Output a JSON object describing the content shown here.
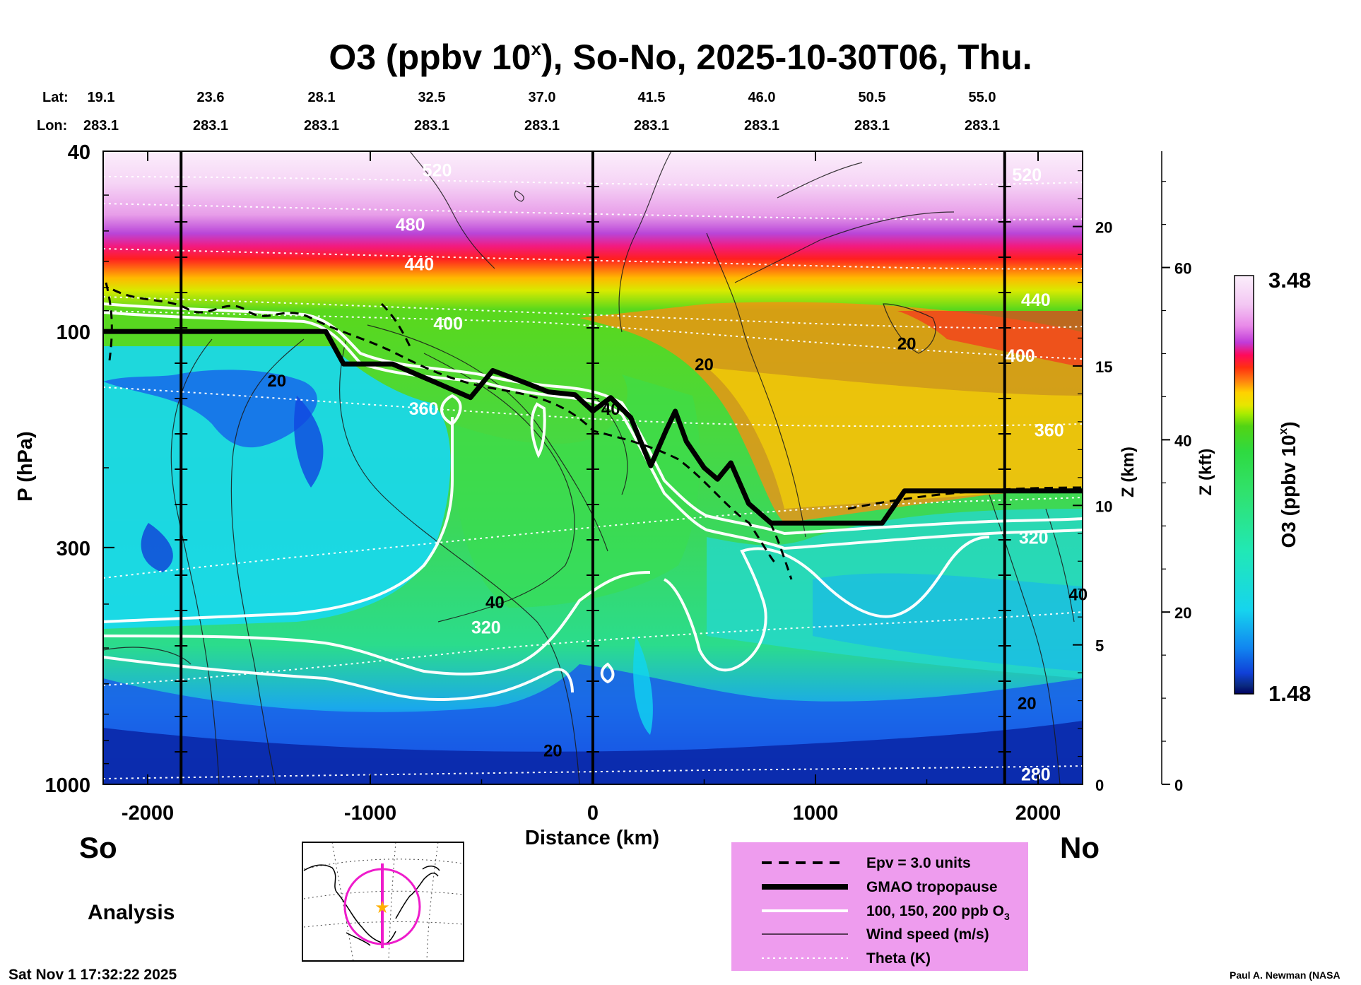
{
  "title": "O3 (ppbv 10",
  "title_sup": "x",
  "title_rest": "), So-No, 2025-10-30T06, Thu.",
  "lat_label": "Lat:",
  "lon_label": "Lon:",
  "lat_values": [
    "19.1",
    "23.6",
    "28.1",
    "32.5",
    "37.0",
    "41.5",
    "46.0",
    "50.5",
    "55.0"
  ],
  "lon_values": [
    "283.1",
    "283.1",
    "283.1",
    "283.1",
    "283.1",
    "283.1",
    "283.1",
    "283.1",
    "283.1"
  ],
  "south_label": "So",
  "north_label": "No",
  "analysis_label": "Analysis",
  "footer_date": "Sat Nov  1 17:32:22 2025",
  "footer_author": "Paul A. Newman (NASA",
  "colorbar": {
    "max_label": "3.48",
    "min_label": "1.48",
    "title": "O3 (ppbv 10",
    "title_sup": "x",
    "title_end": ")"
  },
  "legend": {
    "items": [
      {
        "label": "Epv = 3.0 units",
        "style": "dashed"
      },
      {
        "label": "GMAO tropopause",
        "style": "thick"
      },
      {
        "label": "100, 150, 200 ppb O",
        "sub": "3",
        "style": "white"
      },
      {
        "label": "Wind speed (m/s)",
        "style": "thin"
      },
      {
        "label": "Theta (K)",
        "style": "dotted"
      }
    ]
  },
  "chart_data": {
    "type": "heatmap",
    "title": "O3 (ppbv 10^x), So-No, 2025-10-30T06, Thu.",
    "xlabel": "Distance (km)",
    "ylabel": "P (hPa)",
    "y2label": "Z (km)",
    "y3label": "Z (kft)",
    "xlim": [
      -2200,
      2200
    ],
    "ylim": [
      1000,
      40
    ],
    "x_ticks": [
      -2000,
      -1000,
      0,
      1000,
      2000
    ],
    "x_tick_labels": [
      "-2000",
      "-1000",
      "0",
      "1000",
      "2000"
    ],
    "y_ticks": [
      40,
      100,
      300,
      1000
    ],
    "y_tick_labels": [
      "40",
      "100",
      "300",
      "1000"
    ],
    "z_km_ticks": [
      0,
      5,
      10,
      15,
      20
    ],
    "z_km_labels": [
      "0",
      "5",
      "10",
      "15",
      "20"
    ],
    "z_kft_ticks": [
      0,
      20,
      40,
      60
    ],
    "z_kft_labels": [
      "0",
      "20",
      "40",
      "60"
    ],
    "colorbar_range": [
      1.48,
      3.48
    ],
    "theta_labels": [
      {
        "text": "520",
        "x": -700,
        "p": 44
      },
      {
        "text": "480",
        "x": -820,
        "p": 58
      },
      {
        "text": "440",
        "x": -780,
        "p": 71
      },
      {
        "text": "400",
        "x": -650,
        "p": 96
      },
      {
        "text": "360",
        "x": -760,
        "p": 148
      },
      {
        "text": "320",
        "x": -480,
        "p": 450
      },
      {
        "text": "520",
        "x": 1950,
        "p": 45
      },
      {
        "text": "440",
        "x": 1990,
        "p": 85
      },
      {
        "text": "400",
        "x": 1920,
        "p": 113
      },
      {
        "text": "360",
        "x": 2050,
        "p": 165
      },
      {
        "text": "320",
        "x": 1980,
        "p": 285
      },
      {
        "text": "280",
        "x": 1990,
        "p": 950
      }
    ],
    "wind_labels": [
      {
        "text": "20",
        "x": -1420,
        "p": 128
      },
      {
        "text": "40",
        "x": -440,
        "p": 395
      },
      {
        "text": "40",
        "x": 80,
        "p": 148
      },
      {
        "text": "20",
        "x": 500,
        "p": 118
      },
      {
        "text": "20",
        "x": 1410,
        "p": 106
      },
      {
        "text": "40",
        "x": 2180,
        "p": 380
      },
      {
        "text": "20",
        "x": 1950,
        "p": 660
      },
      {
        "text": "20",
        "x": -180,
        "p": 840
      }
    ],
    "tropopause": {
      "x": [
        -2200,
        -1200,
        -1120,
        -900,
        -700,
        -550,
        -450,
        -300,
        -200,
        -80,
        0,
        80,
        170,
        260,
        330,
        370,
        420,
        500,
        560,
        620,
        700,
        800,
        1000,
        1300,
        1400,
        2200
      ],
      "p": [
        100,
        100,
        118,
        118,
        130,
        140,
        122,
        130,
        136,
        138,
        150,
        140,
        155,
        198,
        165,
        150,
        175,
        200,
        212,
        195,
        240,
        265,
        265,
        265,
        225,
        225
      ]
    },
    "section_lines_km": [
      -1850,
      0,
      1850
    ]
  }
}
